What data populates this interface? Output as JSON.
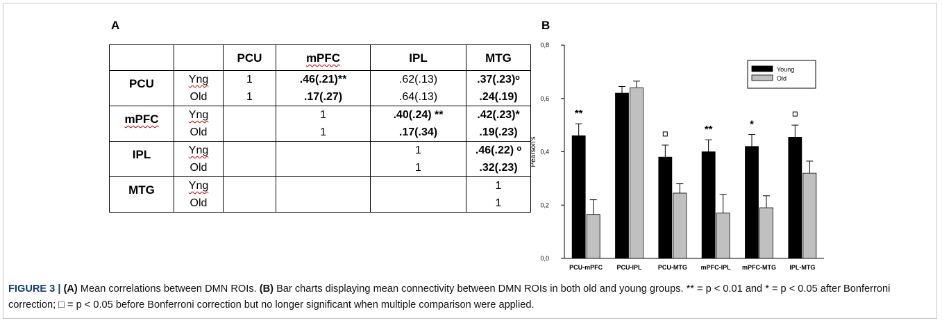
{
  "panel_a_label": "A",
  "panel_b_label": "B",
  "table": {
    "columns": [
      "",
      "",
      "PCU",
      "mPFC",
      "IPL",
      "MTG"
    ],
    "rows": [
      {
        "roi": "PCU",
        "groups": [
          "Yng",
          "Old"
        ],
        "pcu": [
          "1",
          "1"
        ],
        "mpfc": [
          ".46(.21)**",
          ".17(.27)"
        ],
        "ipl": [
          ".62(.13)",
          ".64(.13)"
        ],
        "mtg": [
          ".37(.23)ᵒ",
          ".24(.19)"
        ]
      },
      {
        "roi": "mPFC",
        "groups": [
          "Yng",
          "Old"
        ],
        "pcu": [
          "",
          ""
        ],
        "mpfc": [
          "1",
          "1"
        ],
        "ipl": [
          ".40(.24) **",
          ".17(.34)"
        ],
        "mtg": [
          ".42(.23)*",
          ".19(.23)"
        ]
      },
      {
        "roi": "IPL",
        "groups": [
          "Yng",
          "Old"
        ],
        "pcu": [
          "",
          ""
        ],
        "mpfc": [
          "",
          ""
        ],
        "ipl": [
          "1",
          "1"
        ],
        "mtg": [
          ".46(.22) ᵒ",
          ".32(.23)"
        ]
      },
      {
        "roi": "MTG",
        "groups": [
          "Yng",
          "Old"
        ],
        "pcu": [
          "",
          ""
        ],
        "mpfc": [
          "",
          ""
        ],
        "ipl": [
          "",
          ""
        ],
        "mtg": [
          "1",
          "1"
        ]
      }
    ]
  },
  "chart_data": {
    "type": "bar",
    "categories": [
      "PCU-mPFC",
      "PCU-IPL",
      "PCU-MTG",
      "mPFC-IPL",
      "mPFC-MTG",
      "IPL-MTG"
    ],
    "series": [
      {
        "name": "Young",
        "color": "#000000",
        "values": [
          0.46,
          0.62,
          0.38,
          0.4,
          0.42,
          0.455
        ],
        "errors": [
          0.045,
          0.025,
          0.045,
          0.045,
          0.045,
          0.045
        ]
      },
      {
        "name": "Old",
        "color": "#c0c0c0",
        "values": [
          0.165,
          0.64,
          0.245,
          0.17,
          0.19,
          0.32
        ],
        "errors": [
          0.055,
          0.025,
          0.035,
          0.07,
          0.045,
          0.045
        ]
      }
    ],
    "annotations": [
      "**",
      "",
      "ᵒ",
      "**",
      "*",
      "ᵒ"
    ],
    "ylabel": "Pearson's",
    "yticks": [
      "0,0",
      "0,2",
      "0,4",
      "0,6",
      "0,8"
    ],
    "ylim": [
      0,
      0.8
    ],
    "legend": "top-right"
  },
  "caption": {
    "figure_label": "FIGURE 3 | ",
    "a_label": "(A)",
    "a_text": " Mean correlations between DMN ROIs. ",
    "b_label": "(B)",
    "b_text": " Bar charts displaying mean connectivity between DMN ROIs in both old and young groups. ** = p < 0.01 and * = p < 0.05 after Bonferroni correction; □ = p < 0.05 before Bonferroni correction but no longer significant when multiple comparison were applied."
  }
}
